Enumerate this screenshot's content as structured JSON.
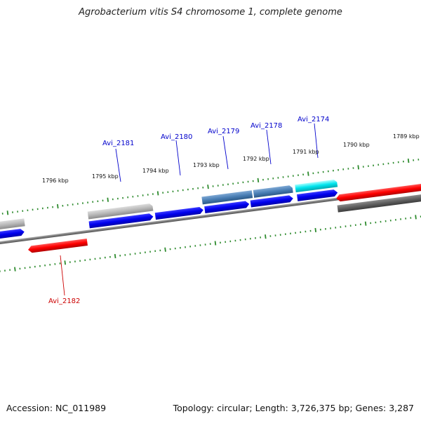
{
  "title": "Agrobacterium vitis S4 chromosome 1, complete genome",
  "footer": {
    "accession": "Accession: NC_011989",
    "summary": "Topology: circular; Length: 3,726,375 bp; Genes: 3,287"
  },
  "colors": {
    "forward_cds": "#0000ee",
    "highlight_red": "#ff0000",
    "grey_feature": "#b8b8b8",
    "dark_grey_feature": "#606060",
    "steel_blue_feature": "#4a7fb5",
    "cyan_feature": "#00e5ee",
    "backbone": "#7a7a7a",
    "ticks": "#2e8b2e",
    "label_blue": "#0000cc",
    "label_red": "#cc0000"
  },
  "kbp_labels": [
    "1796 kbp",
    "1795 kbp",
    "1794 kbp",
    "1793 kbp",
    "1792 kbp",
    "1791 kbp",
    "1790 kbp",
    "1789 kbp"
  ],
  "gene_labels": [
    {
      "text": "Avi_2181",
      "color": "blue"
    },
    {
      "text": "Avi_2180",
      "color": "blue"
    },
    {
      "text": "Avi_2179",
      "color": "blue"
    },
    {
      "text": "Avi_2178",
      "color": "blue"
    },
    {
      "text": "Avi_2174",
      "color": "blue"
    },
    {
      "text": "Avi_2182",
      "color": "red"
    }
  ]
}
